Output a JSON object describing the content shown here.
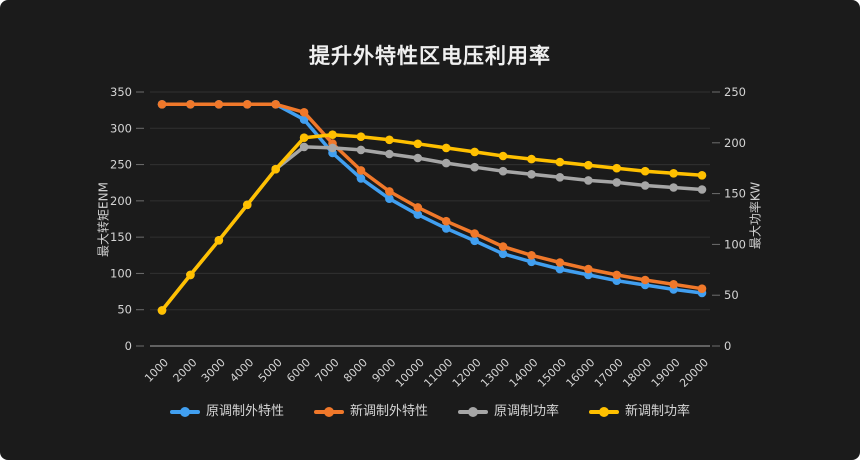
{
  "title": "提升外特性区电压利用率",
  "chart_data": {
    "type": "line",
    "title": "提升外特性区电压利用率",
    "x_categories": [
      "1000",
      "2000",
      "3000",
      "4000",
      "5000",
      "6000",
      "7000",
      "8000",
      "9000",
      "10000",
      "11000",
      "12000",
      "13000",
      "14000",
      "15000",
      "16000",
      "17000",
      "18000",
      "19000",
      "20000"
    ],
    "left_axis": {
      "label": "最大转矩ENM",
      "min": 0,
      "max": 350,
      "tick_step": 50,
      "ticks": [
        "0",
        "50",
        "100",
        "150",
        "200",
        "250",
        "300",
        "350"
      ]
    },
    "right_axis": {
      "label": "最大功率KW",
      "min": 0,
      "max": 250,
      "tick_step": 50,
      "ticks": [
        "0",
        "50",
        "100",
        "150",
        "200",
        "250"
      ]
    },
    "grid": "horizontal",
    "legend_position": "bottom",
    "series": [
      {
        "name": "原调制外特性",
        "axis": "left",
        "color": "#419FF0",
        "values": [
          333,
          333,
          333,
          333,
          333,
          312,
          266,
          231,
          203,
          181,
          162,
          145,
          127,
          116,
          106,
          98,
          90,
          84,
          78,
          73
        ]
      },
      {
        "name": "新调制外特性",
        "axis": "left",
        "color": "#F0782A",
        "values": [
          333,
          333,
          333,
          333,
          333,
          322,
          279,
          242,
          213,
          191,
          172,
          155,
          137,
          125,
          115,
          106,
          98,
          91,
          85,
          79
        ]
      },
      {
        "name": "原调制功率",
        "axis": "right",
        "color": "#A6A6A6",
        "values": [
          35,
          70,
          104,
          139,
          174,
          196,
          195,
          193,
          189,
          185,
          180,
          176,
          172,
          169,
          166,
          163,
          161,
          158,
          156,
          154
        ]
      },
      {
        "name": "新调制功率",
        "axis": "right",
        "color": "#FFC000",
        "values": [
          35,
          70,
          104,
          139,
          174,
          205,
          208,
          206,
          203,
          199,
          195,
          191,
          187,
          184,
          181,
          178,
          175,
          172,
          170,
          168
        ]
      }
    ]
  },
  "colors": {
    "background": "#1b1b1b",
    "title_text": "#f0f0f0",
    "tick_text": "#d4d4d4",
    "axis_title_text": "#cfcfcf",
    "gridline": "#313131",
    "axis_line": "#8c8c8c",
    "tick_mark": "#6e6e6e",
    "legend_text": "#d6d6d6"
  }
}
